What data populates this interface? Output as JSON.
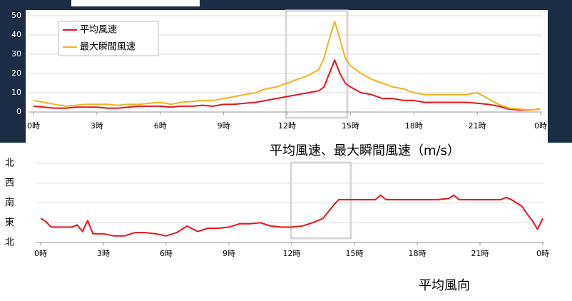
{
  "chart_data": [
    {
      "type": "line",
      "title": "平均風速、最大瞬間風速（m/s）",
      "x": [
        0,
        0.5,
        1,
        1.5,
        2,
        2.5,
        3,
        3.5,
        4,
        4.5,
        5,
        5.5,
        6,
        6.5,
        7,
        7.5,
        8,
        8.5,
        9,
        9.5,
        10,
        10.5,
        11,
        11.5,
        12,
        12.5,
        13,
        13.5,
        13.75,
        14,
        14.25,
        14.5,
        14.75,
        15,
        15.5,
        16,
        16.5,
        17,
        17.5,
        18,
        18.5,
        19,
        19.5,
        20,
        20.5,
        21,
        21.5,
        22,
        22.5,
        23,
        23.5,
        24
      ],
      "series": [
        {
          "name": "平均風速",
          "color": "#e8141c",
          "values": [
            3,
            2.5,
            2,
            2,
            2.5,
            2.5,
            2.5,
            2,
            2,
            2.5,
            3,
            3,
            3,
            2.5,
            3,
            3,
            3.5,
            3,
            4,
            4,
            4.5,
            5,
            6,
            7,
            8,
            9,
            10,
            11,
            13,
            20,
            27,
            20,
            15,
            13,
            10,
            9,
            7,
            7,
            6,
            6,
            5,
            5,
            5,
            5,
            5,
            4.5,
            4,
            3,
            1.5,
            1,
            1,
            1.5
          ]
        },
        {
          "name": "最大瞬間風速",
          "color": "#f0b41c",
          "values": [
            6,
            5,
            4,
            3,
            3.5,
            4,
            4,
            4,
            3.5,
            4,
            4,
            4.5,
            5,
            4,
            5,
            5.5,
            6,
            6,
            7,
            8,
            9,
            10,
            12,
            13,
            15,
            17,
            19,
            22,
            28,
            38,
            47,
            38,
            28,
            24,
            20,
            17,
            15,
            13,
            12,
            10,
            9,
            9,
            9,
            9,
            9,
            10,
            7,
            4,
            2,
            1.5,
            1,
            1.5
          ]
        }
      ],
      "xlim": [
        0,
        24
      ],
      "xticks": [
        {
          "value": 0,
          "label": "0時"
        },
        {
          "value": 3,
          "label": "3時"
        },
        {
          "value": 6,
          "label": "6時"
        },
        {
          "value": 9,
          "label": "9時"
        },
        {
          "value": 12,
          "label": "12時"
        },
        {
          "value": 15,
          "label": "15時"
        },
        {
          "value": 18,
          "label": "18時"
        },
        {
          "value": 21,
          "label": "21時"
        },
        {
          "value": 24,
          "label": "0時"
        }
      ],
      "ylim": [
        0,
        50
      ],
      "yticks": [
        0,
        10,
        20,
        30,
        40,
        50
      ],
      "grid": true,
      "legend": "upper-left"
    },
    {
      "type": "line",
      "title": "平均風向",
      "x": [
        0,
        0.25,
        0.5,
        1,
        1.5,
        1.75,
        2,
        2.25,
        2.5,
        3,
        3.5,
        4,
        4.5,
        5,
        5.5,
        6,
        6.5,
        7,
        7.5,
        8,
        8.5,
        9,
        9.5,
        10,
        10.5,
        11,
        11.5,
        12,
        12.5,
        13,
        13.5,
        14,
        14.25,
        15,
        15.5,
        16,
        16.25,
        16.5,
        17,
        17.5,
        18,
        18.5,
        19,
        19.5,
        19.75,
        20,
        21,
        21.5,
        22,
        22.25,
        22.5,
        23,
        23.25,
        23.5,
        23.75,
        24
      ],
      "series": [
        {
          "color": "#e8141c",
          "values": [
            110,
            95,
            70,
            70,
            70,
            80,
            50,
            100,
            40,
            40,
            30,
            30,
            45,
            45,
            40,
            30,
            45,
            75,
            50,
            65,
            65,
            70,
            85,
            85,
            90,
            75,
            70,
            70,
            75,
            90,
            110,
            170,
            195,
            195,
            195,
            195,
            215,
            195,
            195,
            195,
            195,
            195,
            195,
            200,
            215,
            195,
            195,
            195,
            195,
            205,
            195,
            165,
            130,
            100,
            60,
            110
          ]
        }
      ],
      "xlim": [
        0,
        24
      ],
      "xticks": [
        {
          "value": 0,
          "label": "0時"
        },
        {
          "value": 3,
          "label": "3時"
        },
        {
          "value": 6,
          "label": "6時"
        },
        {
          "value": 9,
          "label": "9時"
        },
        {
          "value": 12,
          "label": "12時"
        },
        {
          "value": 15,
          "label": "15時"
        },
        {
          "value": 18,
          "label": "18時"
        },
        {
          "value": 21,
          "label": "21時"
        },
        {
          "value": 24,
          "label": "0時"
        }
      ],
      "ylim": [
        0,
        360
      ],
      "yticks": [
        {
          "value": 0,
          "label": "北"
        },
        {
          "value": 90,
          "label": "東"
        },
        {
          "value": 180,
          "label": "南"
        },
        {
          "value": 270,
          "label": "西"
        },
        {
          "value": 360,
          "label": "北"
        }
      ],
      "grid": true
    }
  ]
}
